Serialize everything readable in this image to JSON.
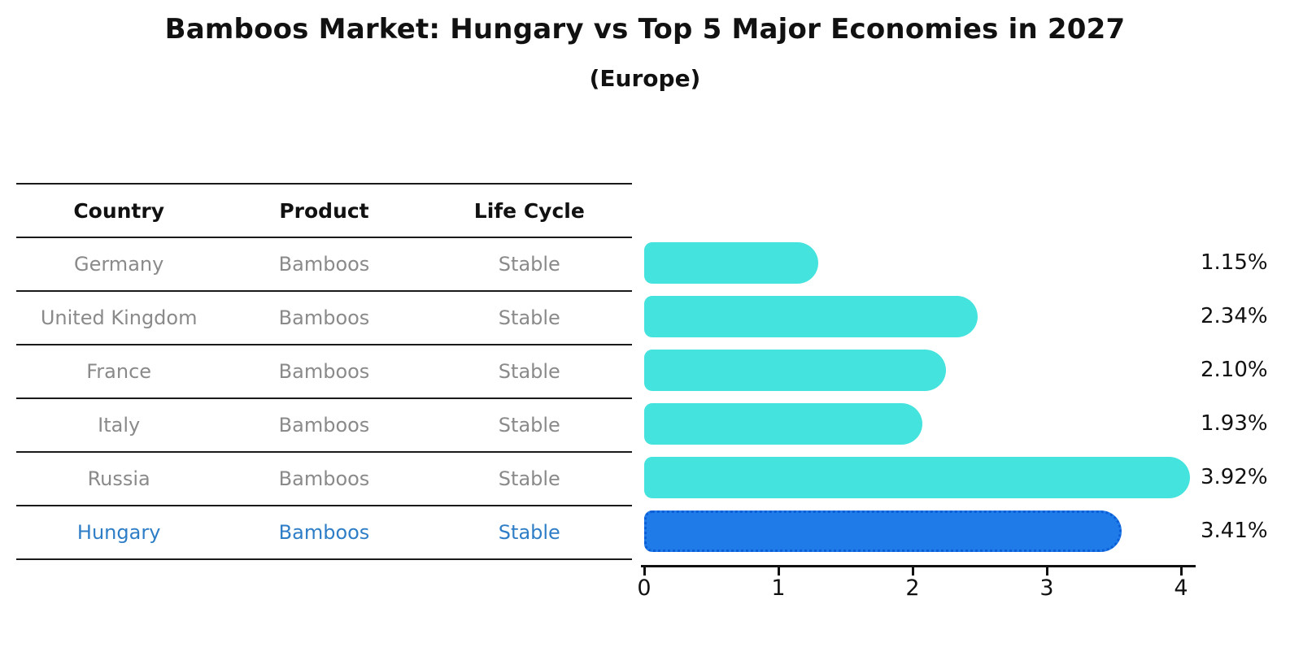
{
  "title": "Bamboos Market: Hungary vs Top 5 Major Economies in 2027",
  "subtitle": "(Europe)",
  "table": {
    "headers": [
      "Country",
      "Product",
      "Life Cycle"
    ],
    "rows": [
      {
        "country": "Germany",
        "product": "Bamboos",
        "life_cycle": "Stable",
        "highlight": false
      },
      {
        "country": "United Kingdom",
        "product": "Bamboos",
        "life_cycle": "Stable",
        "highlight": false
      },
      {
        "country": "France",
        "product": "Bamboos",
        "life_cycle": "Stable",
        "highlight": false
      },
      {
        "country": "Italy",
        "product": "Bamboos",
        "life_cycle": "Stable",
        "highlight": false
      },
      {
        "country": "Russia",
        "product": "Bamboos",
        "life_cycle": "Stable",
        "highlight": false
      },
      {
        "country": "Hungary",
        "product": "Bamboos",
        "life_cycle": "Stable",
        "highlight": true
      }
    ]
  },
  "chart_data": {
    "type": "bar",
    "orientation": "horizontal",
    "title": "Bamboos Market: Hungary vs Top 5 Major Economies in 2027",
    "subtitle": "(Europe)",
    "categories": [
      "Germany",
      "United Kingdom",
      "France",
      "Italy",
      "Russia",
      "Hungary"
    ],
    "values": [
      1.15,
      2.34,
      2.1,
      1.93,
      3.92,
      3.41
    ],
    "value_labels": [
      "1.15%",
      "2.34%",
      "2.10%",
      "1.93%",
      "3.92%",
      "3.41%"
    ],
    "x_ticks": [
      0,
      1,
      2,
      3,
      4
    ],
    "xlim": [
      0,
      4.1
    ],
    "grid": false,
    "legend": "none",
    "highlight_index": 5
  },
  "colors": {
    "bar": "#45e3de",
    "highlight_bar": "#1e7be8",
    "highlight_edge": "#0b5ed7",
    "highlight_text": "#2e7ec7",
    "row_text": "#8a8a8a",
    "line": "#1a1a1a",
    "text": "#111111"
  }
}
